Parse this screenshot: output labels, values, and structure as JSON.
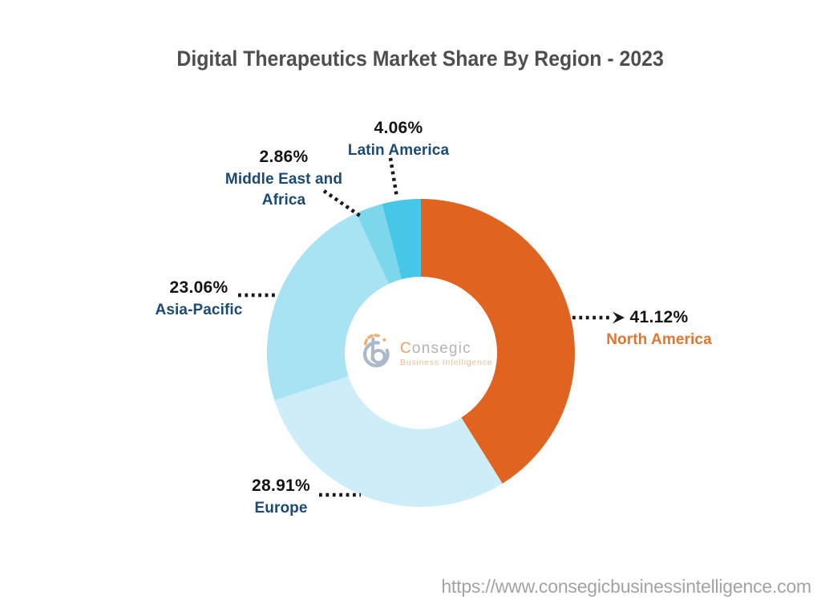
{
  "title": "Digital Therapeutics Market Share By Region - 2023",
  "watermark": {
    "brand_initial": "C",
    "brand_rest": "onsegic",
    "tagline": "Business Intelligence"
  },
  "footer": {
    "url": "https://www.consegicbusinessintelligence.com"
  },
  "chart_data": {
    "type": "pie",
    "subtype": "donut",
    "title": "Digital Therapeutics Market Share By Region - 2023",
    "unit": "%",
    "start_angle_deg": 0,
    "direction": "clockwise",
    "inner_radius_ratio": 0.495,
    "legend": "none (direct callout labels with dotted leader lines)",
    "segments": [
      {
        "label": "North America",
        "value": 41.12,
        "display_value": "41.12%",
        "color": "#e0631f",
        "label_color": "#e0762f"
      },
      {
        "label": "Europe",
        "value": 28.91,
        "display_value": "28.91%",
        "color": "#cdedf8",
        "label_color": "#1c4a74"
      },
      {
        "label": "Asia-Pacific",
        "value": 23.06,
        "display_value": "23.06%",
        "color": "#a7e3f2",
        "label_color": "#1c4a74"
      },
      {
        "label": "Middle East and Africa",
        "value": 2.86,
        "display_value": "2.86%",
        "color": "#7bd7e9",
        "label_color": "#1c4a74"
      },
      {
        "label": "Latin America",
        "value": 4.06,
        "display_value": "4.06%",
        "color": "#46c7e7",
        "label_color": "#1c4a74"
      }
    ]
  }
}
